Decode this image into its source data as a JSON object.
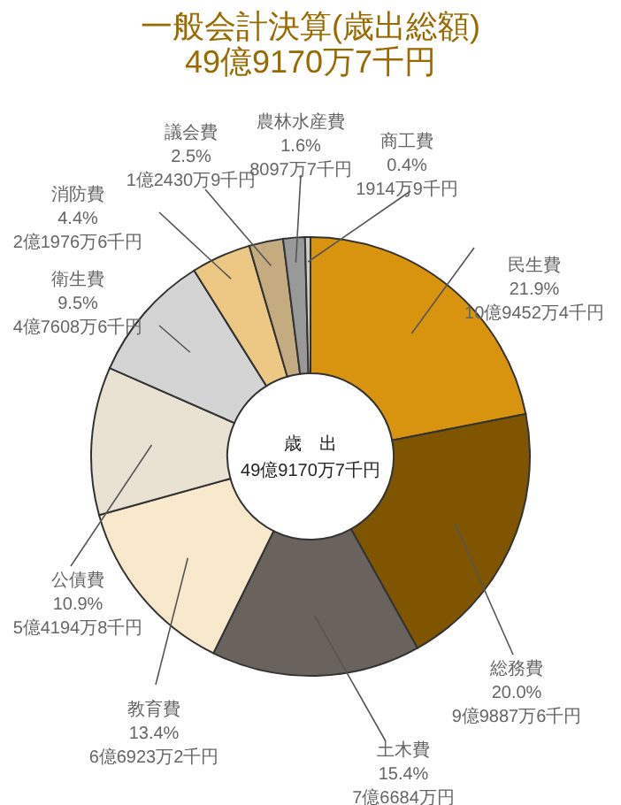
{
  "chart_data": {
    "type": "donut",
    "title": "一般会計決算(歳出総額)",
    "subtitle": "49億9170万7千円",
    "categories": [
      "民生費",
      "総務費",
      "土木費",
      "教育費",
      "公債費",
      "衛生費",
      "消防費",
      "議会費",
      "農林水産費",
      "商工費"
    ],
    "values": [
      21.9,
      20.0,
      15.4,
      13.4,
      10.9,
      9.5,
      4.4,
      2.5,
      1.6,
      0.4
    ],
    "colors": [
      "#d9940f",
      "#7f5500",
      "#6a625c",
      "#f8e9cd",
      "#e9e2d3",
      "#d4d4d4",
      "#ecc884",
      "#c4ac80",
      "#999999",
      "#cccccc"
    ],
    "value_labels": [
      "21.9%\n10億9452万4千円",
      "20.0%\n9億9887万6千円",
      "15.4%\n7億6684万円",
      "13.4%\n6億6923万2千円",
      "10.9%\n5億4194万8千円",
      "9.5%\n4億7608万6千円",
      "4.4%\n2億1976万6千円",
      "2.5%\n1億2430万9千円",
      "1.6%\n8097万7千円",
      "0.4%\n1914万9千円"
    ],
    "annotations": [
      "歳　出",
      "49億9170万7千円"
    ]
  }
}
